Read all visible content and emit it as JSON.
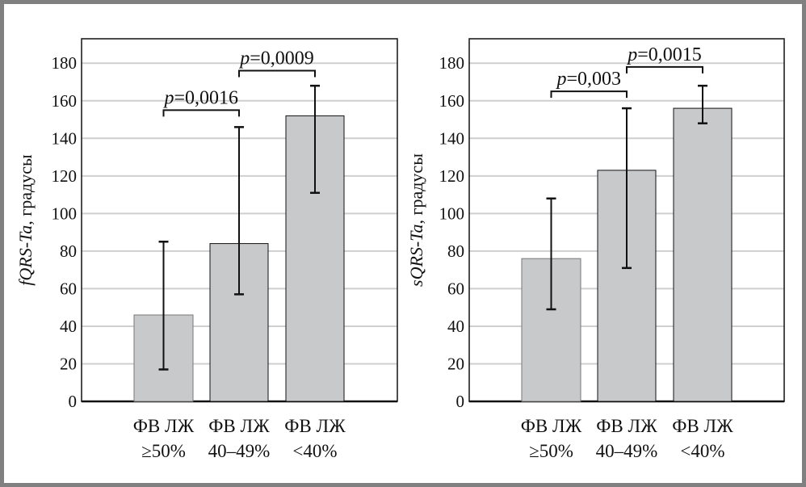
{
  "chart_data": [
    {
      "type": "bar",
      "ylabel_italic": "fQRS-Ta",
      "ylabel_rest": ", градусы",
      "ylim": [
        0,
        193
      ],
      "yticks": [
        0,
        20,
        40,
        60,
        80,
        100,
        120,
        140,
        160,
        180
      ],
      "grid": true,
      "categories": [
        [
          "ФВ ЛЖ",
          "≥50%"
        ],
        [
          "ФВ ЛЖ",
          "40–49%"
        ],
        [
          "ФВ ЛЖ",
          "<40%"
        ]
      ],
      "values": [
        46,
        84,
        152
      ],
      "error_low": [
        17,
        57,
        111
      ],
      "error_high": [
        85,
        146,
        168
      ],
      "annotations": [
        {
          "from": 0,
          "to": 1,
          "level": 155,
          "p_label": "p",
          "text": "=0,0016"
        },
        {
          "from": 1,
          "to": 2,
          "level": 176,
          "p_label": "p",
          "text": "=0,0009"
        }
      ]
    },
    {
      "type": "bar",
      "ylabel_italic": "sQRS-Ta",
      "ylabel_rest": ", градусы",
      "ylim": [
        0,
        193
      ],
      "yticks": [
        0,
        20,
        40,
        60,
        80,
        100,
        120,
        140,
        160,
        180
      ],
      "grid": true,
      "categories": [
        [
          "ФВ ЛЖ",
          "≥50%"
        ],
        [
          "ФВ ЛЖ",
          "40–49%"
        ],
        [
          "ФВ ЛЖ",
          "<40%"
        ]
      ],
      "values": [
        76,
        123,
        156
      ],
      "error_low": [
        49,
        71,
        148
      ],
      "error_high": [
        108,
        156,
        168
      ],
      "annotations": [
        {
          "from": 0,
          "to": 1,
          "level": 165,
          "p_label": "p",
          "text": "=0,003"
        },
        {
          "from": 1,
          "to": 2,
          "level": 178,
          "p_label": "p",
          "text": "=0,0015"
        }
      ]
    }
  ],
  "colors": {
    "bar": "#c8c9cb",
    "grid": "#cfcfcf",
    "frame": "#808080"
  }
}
